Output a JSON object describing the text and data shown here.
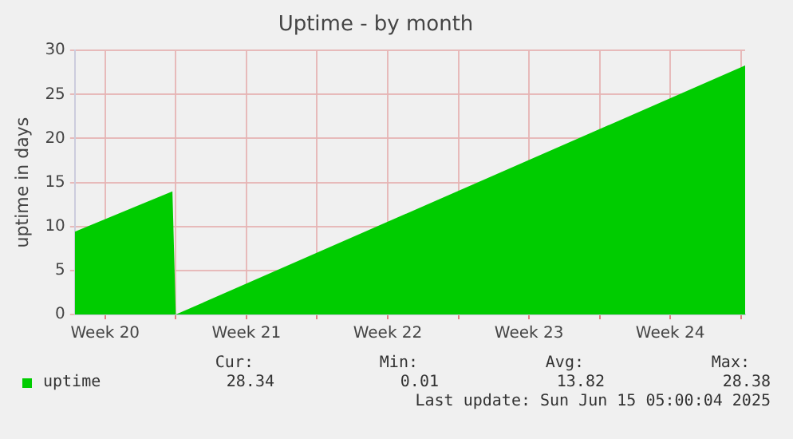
{
  "chart_data": {
    "type": "area",
    "title": "Uptime - by month",
    "ylabel": "uptime in days",
    "x": [
      "2025-05-13T00:00",
      "2025-05-17T20:00",
      "2025-05-18T00:00",
      "2025-06-15T05:00"
    ],
    "series": [
      {
        "name": "uptime",
        "color": "#00cc00",
        "values": [
          9.4,
          14.0,
          0,
          28.3
        ]
      }
    ],
    "xlim": [
      "2025-05-13T00:00",
      "2025-06-15T05:00"
    ],
    "xticks": [
      {
        "value": "2025-05-14T12:00",
        "label": "Week 20"
      },
      {
        "value": "2025-05-18T00:00",
        "label": null
      },
      {
        "value": "2025-05-21T12:00",
        "label": "Week 21"
      },
      {
        "value": "2025-05-25T00:00",
        "label": null
      },
      {
        "value": "2025-05-28T12:00",
        "label": "Week 22"
      },
      {
        "value": "2025-06-01T00:00",
        "label": null
      },
      {
        "value": "2025-06-04T12:00",
        "label": "Week 23"
      },
      {
        "value": "2025-06-08T00:00",
        "label": null
      },
      {
        "value": "2025-06-11T12:00",
        "label": "Week 24"
      },
      {
        "value": "2025-06-15T00:00",
        "label": null
      }
    ],
    "ylim": [
      0,
      30
    ],
    "yticks": [
      0,
      5,
      10,
      15,
      20,
      25,
      30
    ],
    "grid": true,
    "legend": "bottom left",
    "annotations": [
      "Cur:",
      "Min:",
      "Avg:",
      "Max:",
      "28.34",
      "0.01",
      "13.82",
      "28.38",
      "Last update: Sun Jun 15 05:00:04 2025"
    ]
  }
}
